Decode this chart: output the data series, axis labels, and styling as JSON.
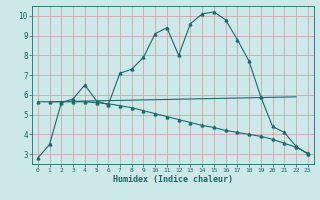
{
  "background_color": "#cce8e8",
  "grid_color": "#aacccc",
  "line_color": "#1a6b6b",
  "xlabel": "Humidex (Indice chaleur)",
  "ylim": [
    2.5,
    10.5
  ],
  "xlim": [
    -0.5,
    23.5
  ],
  "yticks": [
    3,
    4,
    5,
    6,
    7,
    8,
    9,
    10
  ],
  "xticks": [
    0,
    1,
    2,
    3,
    4,
    5,
    6,
    7,
    8,
    9,
    10,
    11,
    12,
    13,
    14,
    15,
    16,
    17,
    18,
    19,
    20,
    21,
    22,
    23
  ],
  "line1_x": [
    0,
    1,
    2,
    3,
    4,
    5,
    6,
    7,
    8,
    9,
    10,
    11,
    12,
    13,
    14,
    15,
    16,
    17,
    18,
    19,
    20,
    21,
    22,
    23
  ],
  "line1_y": [
    2.8,
    3.5,
    5.6,
    5.8,
    6.5,
    5.7,
    5.5,
    7.1,
    7.3,
    7.9,
    9.1,
    9.4,
    8.0,
    9.6,
    10.1,
    10.2,
    9.8,
    8.8,
    7.7,
    5.9,
    4.4,
    4.1,
    3.4,
    3.0
  ],
  "line2_x": [
    1,
    22
  ],
  "line2_y": [
    5.65,
    5.9
  ],
  "line3_x": [
    0,
    1,
    2,
    3,
    4,
    5,
    6,
    7,
    8,
    9,
    10,
    11,
    12,
    13,
    14,
    15,
    16,
    17,
    18,
    19,
    20,
    21,
    22,
    23
  ],
  "line3_y": [
    5.65,
    5.65,
    5.65,
    5.65,
    5.65,
    5.6,
    5.55,
    5.45,
    5.35,
    5.2,
    5.05,
    4.9,
    4.75,
    4.6,
    4.45,
    4.35,
    4.2,
    4.1,
    4.0,
    3.9,
    3.75,
    3.55,
    3.35,
    3.05
  ]
}
